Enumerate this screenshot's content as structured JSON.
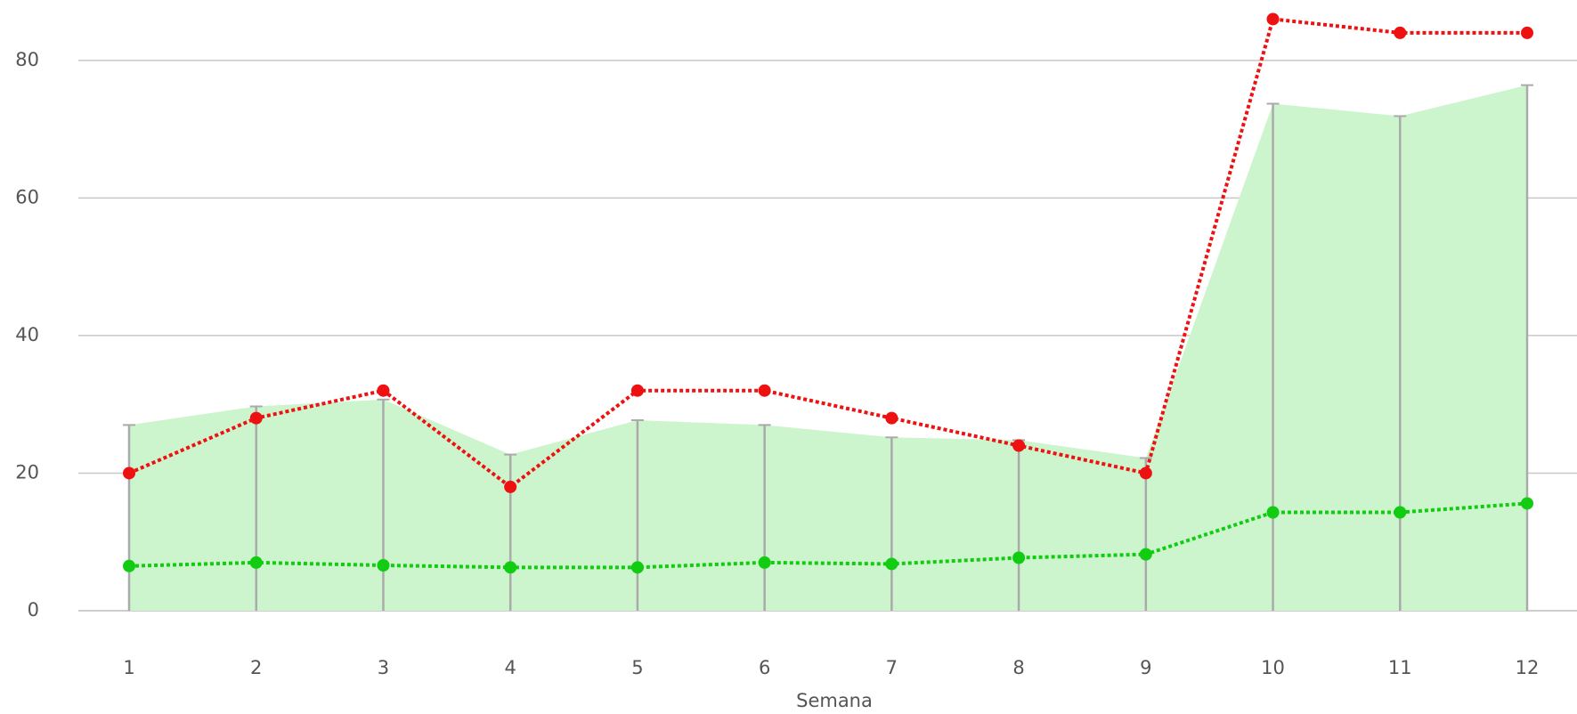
{
  "chart_data": {
    "type": "line",
    "x_label": "Semana",
    "categories": [
      "1",
      "2",
      "3",
      "4",
      "5",
      "6",
      "7",
      "8",
      "9",
      "10",
      "11",
      "12"
    ],
    "ylim": [
      0,
      88
    ],
    "yticks": [
      0,
      20,
      40,
      60,
      80
    ],
    "grid": true,
    "series": [
      {
        "style": "area",
        "color": "#cdf5cd",
        "values": [
          27,
          29.7,
          30.7,
          22.7,
          27.7,
          27,
          25.2,
          24.8,
          22.2,
          73.7,
          71.9,
          76.4
        ]
      },
      {
        "style": "dotted",
        "color": "#ee1111",
        "values": [
          20,
          28,
          32,
          18,
          32,
          32,
          28,
          24,
          20,
          86,
          84,
          84
        ]
      },
      {
        "style": "dotted",
        "color": "#11cc11",
        "values": [
          6.5,
          7,
          6.6,
          6.3,
          6.3,
          7,
          6.8,
          7.7,
          8.2,
          14.3,
          14.3,
          15.6
        ]
      }
    ]
  }
}
